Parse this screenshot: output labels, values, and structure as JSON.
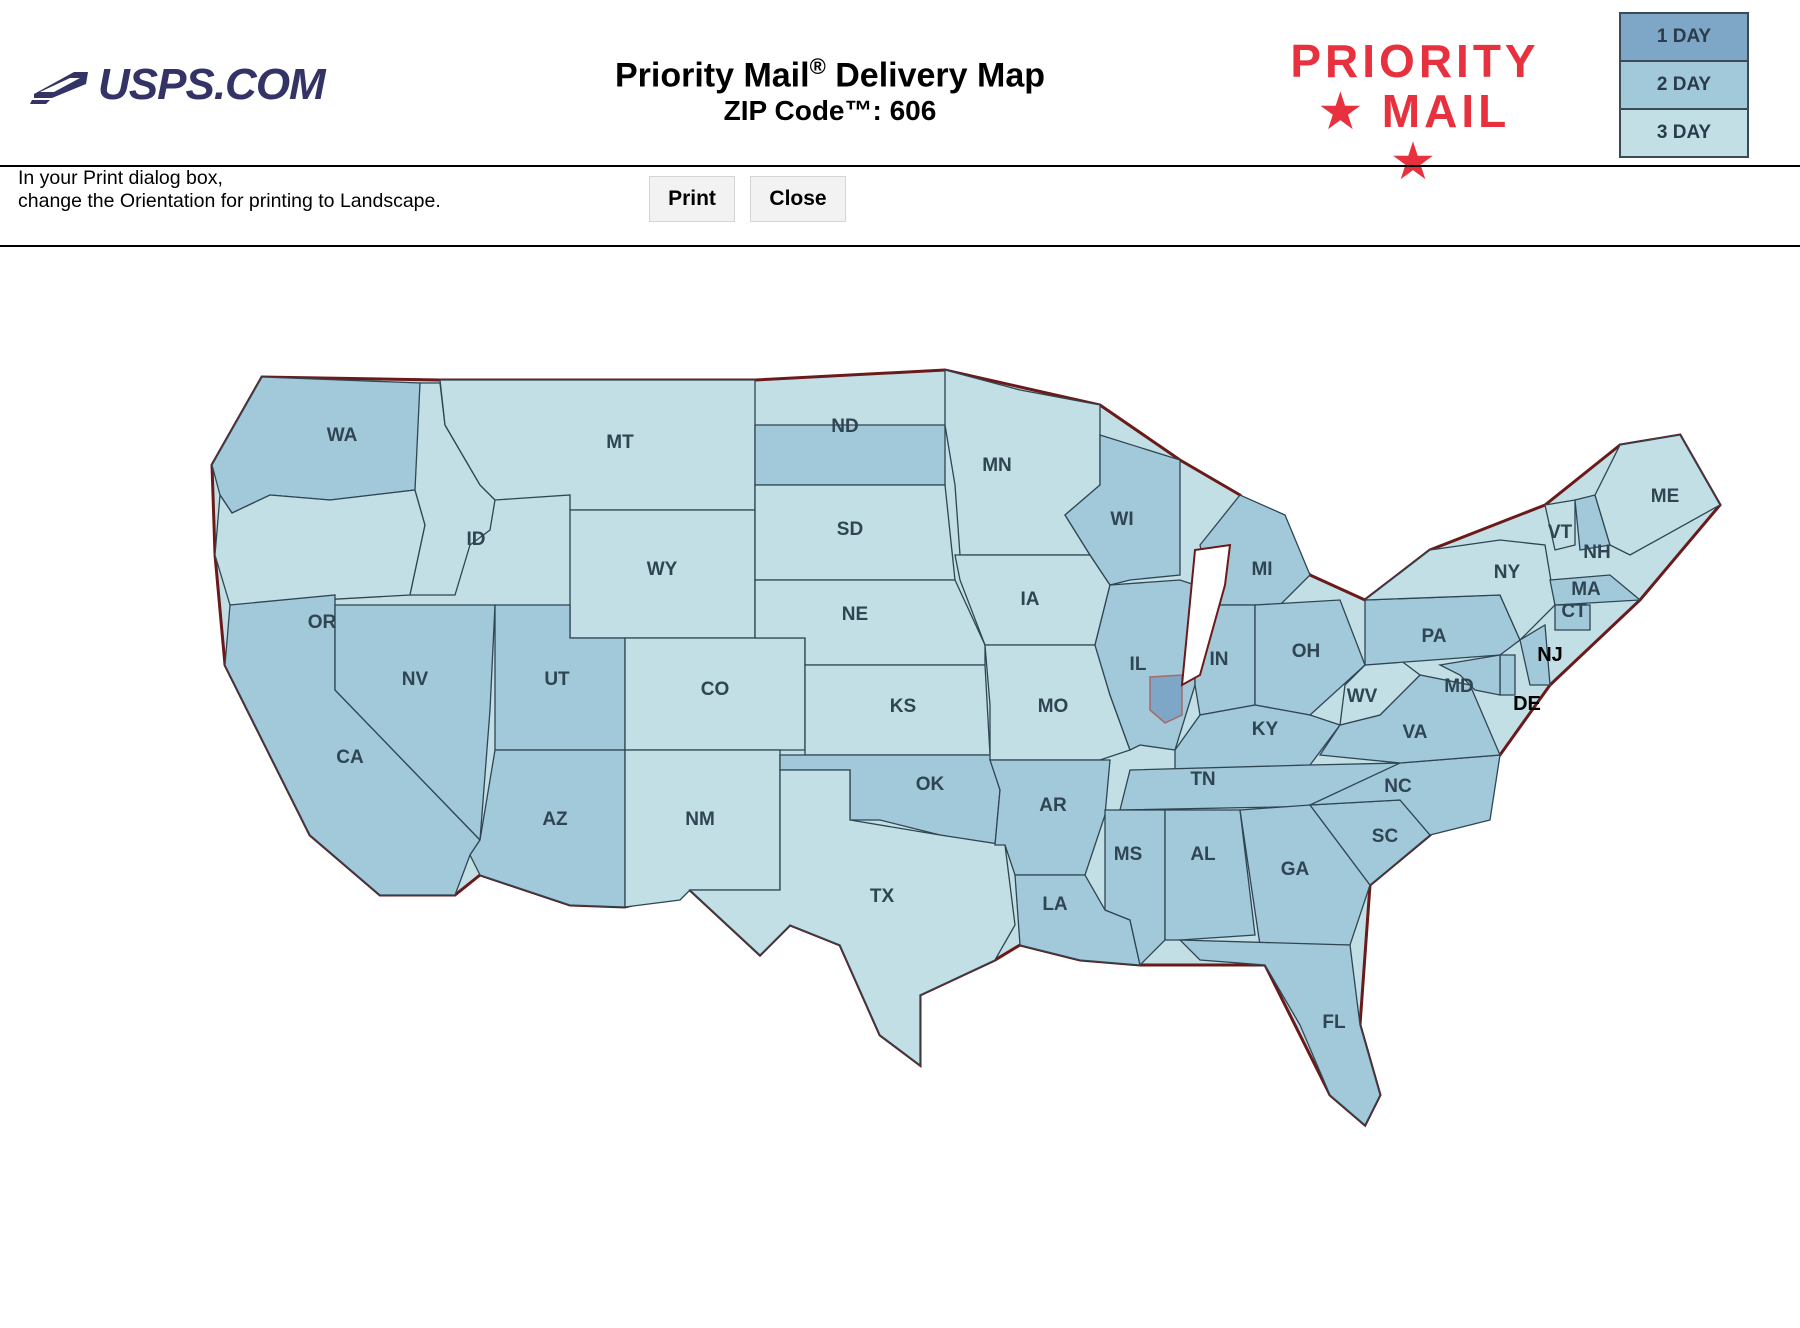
{
  "header": {
    "logo_text": "USPS.COM",
    "title": "Priority Mail",
    "title_mark": "®",
    "title_suffix": " Delivery Map",
    "subtitle": "ZIP Code™: 606",
    "brand_line1": "PRIORITY",
    "brand_line2": "★ MAIL ★"
  },
  "legend": [
    {
      "label": "1 DAY",
      "color": "#7ea7c7"
    },
    {
      "label": "2 DAY",
      "color": "#a2c9da"
    },
    {
      "label": "3 DAY",
      "color": "#c2dfe6"
    }
  ],
  "instructions": {
    "line1": "In your Print dialog box,",
    "line2": "change the Orientation for printing to Landscape."
  },
  "buttons": {
    "print": "Print",
    "close": "Close"
  },
  "colors": {
    "one_day": "#7ea7c7",
    "two_day": "#a2c9da",
    "three_day": "#c2dfe6",
    "state_border": "#2f4552",
    "zone_border": "#a86a68",
    "outline": "#6b1a1a",
    "brand_red": "#e8313e"
  },
  "map": {
    "states": [
      {
        "abbr": "WA",
        "zone": "two_day"
      },
      {
        "abbr": "OR",
        "zone": "three_day"
      },
      {
        "abbr": "CA",
        "zone": "two_day"
      },
      {
        "abbr": "ID",
        "zone": "three_day"
      },
      {
        "abbr": "NV",
        "zone": "two_day"
      },
      {
        "abbr": "MT",
        "zone": "three_day"
      },
      {
        "abbr": "WY",
        "zone": "three_day"
      },
      {
        "abbr": "UT",
        "zone": "two_day"
      },
      {
        "abbr": "AZ",
        "zone": "two_day"
      },
      {
        "abbr": "CO",
        "zone": "three_day"
      },
      {
        "abbr": "NM",
        "zone": "three_day"
      },
      {
        "abbr": "ND",
        "zone": "two_day"
      },
      {
        "abbr": "SD",
        "zone": "three_day"
      },
      {
        "abbr": "NE",
        "zone": "three_day"
      },
      {
        "abbr": "KS",
        "zone": "three_day"
      },
      {
        "abbr": "OK",
        "zone": "two_day"
      },
      {
        "abbr": "TX",
        "zone": "three_day"
      },
      {
        "abbr": "MN",
        "zone": "three_day"
      },
      {
        "abbr": "IA",
        "zone": "three_day"
      },
      {
        "abbr": "MO",
        "zone": "three_day"
      },
      {
        "abbr": "AR",
        "zone": "two_day"
      },
      {
        "abbr": "LA",
        "zone": "two_day"
      },
      {
        "abbr": "WI",
        "zone": "two_day"
      },
      {
        "abbr": "IL",
        "zone": "two_day"
      },
      {
        "abbr": "MI",
        "zone": "two_day"
      },
      {
        "abbr": "IN",
        "zone": "two_day"
      },
      {
        "abbr": "OH",
        "zone": "two_day"
      },
      {
        "abbr": "KY",
        "zone": "two_day"
      },
      {
        "abbr": "TN",
        "zone": "two_day"
      },
      {
        "abbr": "MS",
        "zone": "two_day"
      },
      {
        "abbr": "AL",
        "zone": "two_day"
      },
      {
        "abbr": "GA",
        "zone": "two_day"
      },
      {
        "abbr": "FL",
        "zone": "two_day"
      },
      {
        "abbr": "SC",
        "zone": "two_day"
      },
      {
        "abbr": "NC",
        "zone": "two_day"
      },
      {
        "abbr": "VA",
        "zone": "two_day"
      },
      {
        "abbr": "WV",
        "zone": "three_day"
      },
      {
        "abbr": "PA",
        "zone": "two_day"
      },
      {
        "abbr": "NY",
        "zone": "three_day"
      },
      {
        "abbr": "VT",
        "zone": "three_day"
      },
      {
        "abbr": "NH",
        "zone": "two_day"
      },
      {
        "abbr": "ME",
        "zone": "three_day"
      },
      {
        "abbr": "MA",
        "zone": "two_day"
      },
      {
        "abbr": "CT",
        "zone": "two_day"
      },
      {
        "abbr": "NJ",
        "zone": "two_day"
      },
      {
        "abbr": "DE",
        "zone": "two_day"
      },
      {
        "abbr": "MD",
        "zone": "two_day"
      }
    ],
    "origin_zone": "one_day"
  }
}
